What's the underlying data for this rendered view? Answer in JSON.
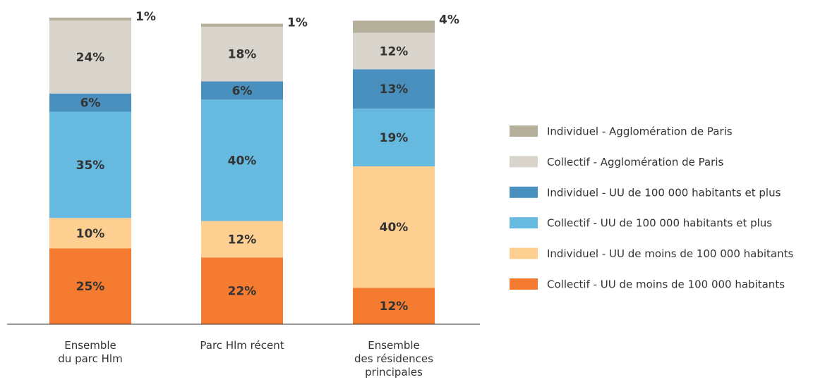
{
  "chart_data": {
    "type": "stacked_bar",
    "categories": [
      "Ensemble\ndu parc Hlm",
      "Parc Hlm récent",
      "Ensemble\ndes résidences\nprincipales"
    ],
    "series": [
      {
        "name": "Collectif - UU de moins de 100 000 habitants",
        "color": "#f47b30",
        "values": [
          25,
          22,
          12
        ],
        "value_labels": [
          "25%",
          "22%",
          "12%"
        ]
      },
      {
        "name": "Individuel - UU de moins de 100 000 habitants",
        "color": "#fdd092",
        "values": [
          10,
          12,
          40
        ],
        "value_labels": [
          "10%",
          "12%",
          "40%"
        ]
      },
      {
        "name": "Collectif - UU de 100 000 habitants et plus",
        "color": "#66bae0",
        "values": [
          35,
          40,
          19
        ],
        "value_labels": [
          "35%",
          "40%",
          "19%"
        ]
      },
      {
        "name": "Individuel - UU de 100 000 habitants et plus",
        "color": "#4a90bf",
        "values": [
          6,
          6,
          13
        ],
        "value_labels": [
          "6%",
          "6%",
          "13%"
        ]
      },
      {
        "name": "Collectif - Agglomération de Paris",
        "color": "#d9d5cc",
        "values": [
          24,
          18,
          12
        ],
        "value_labels": [
          "24%",
          "18%",
          "12%"
        ]
      },
      {
        "name": "Individuel - Agglomération de Paris",
        "color": "#b5b09b",
        "values": [
          1,
          1,
          4
        ],
        "value_labels": [
          "1%",
          "1%",
          "4%"
        ]
      }
    ],
    "legend": "right"
  }
}
